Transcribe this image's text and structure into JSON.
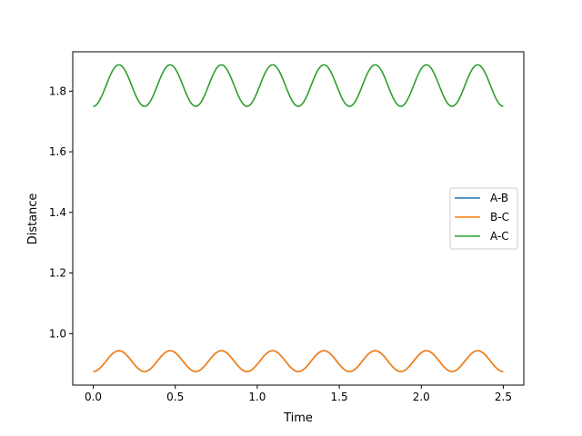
{
  "chart_data": {
    "type": "line",
    "xlabel": "Time",
    "ylabel": "Distance",
    "xlim": [
      -0.125,
      2.625
    ],
    "ylim": [
      0.83,
      1.93
    ],
    "xticks": [
      0.0,
      0.5,
      1.0,
      1.5,
      2.0,
      2.5
    ],
    "xtick_labels": [
      "0.0",
      "0.5",
      "1.0",
      "1.5",
      "2.0",
      "2.5"
    ],
    "yticks": [
      1.0,
      1.2,
      1.4,
      1.6,
      1.8
    ],
    "ytick_labels": [
      "1.0",
      "1.2",
      "1.4",
      "1.6",
      "1.8"
    ],
    "grid": false,
    "legend_position": "center-right",
    "x_range": [
      0.0,
      2.5
    ],
    "period": 0.3125,
    "series": [
      {
        "name": "A-B",
        "color": "#1f77b4",
        "min": 0.875,
        "max": 0.9435
      },
      {
        "name": "B-C",
        "color": "#ff7f0e",
        "min": 0.875,
        "max": 0.9435
      },
      {
        "name": "A-C",
        "color": "#2ca02c",
        "min": 1.75,
        "max": 1.887
      }
    ]
  }
}
